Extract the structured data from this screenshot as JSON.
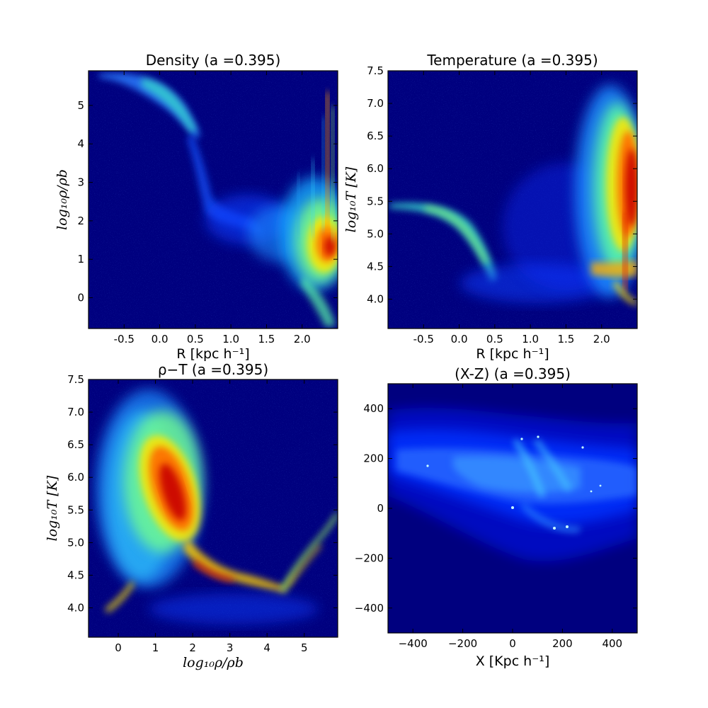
{
  "chart_data": [
    {
      "type": "heatmap",
      "title": "Density (a =0.395)",
      "xlabel": "R [kpc h⁻¹]",
      "ylabel": "log₁₀ρ/ρb",
      "xlim": [
        -1.0,
        2.5
      ],
      "ylim": [
        -0.8,
        5.9
      ],
      "xticks": [
        "-0.5",
        "0.0",
        "0.5",
        "1.0",
        "1.5",
        "2.0"
      ],
      "xtick_values": [
        -0.5,
        0.0,
        0.5,
        1.0,
        1.5,
        2.0
      ],
      "yticks": [
        "0",
        "1",
        "2",
        "3",
        "4",
        "5"
      ],
      "ytick_values": [
        0,
        1,
        2,
        3,
        4,
        5
      ],
      "colormap": "jet",
      "background": "#00007f"
    },
    {
      "type": "heatmap",
      "title": "Temperature (a =0.395)",
      "xlabel": "R [kpc h⁻¹]",
      "ylabel": "log₁₀T  [K]",
      "xlim": [
        -1.0,
        2.5
      ],
      "ylim": [
        3.55,
        7.5
      ],
      "xticks": [
        "-0.5",
        "0.0",
        "0.5",
        "1.0",
        "1.5",
        "2.0"
      ],
      "xtick_values": [
        -0.5,
        0.0,
        0.5,
        1.0,
        1.5,
        2.0
      ],
      "yticks": [
        "4.0",
        "4.5",
        "5.0",
        "5.5",
        "6.0",
        "6.5",
        "7.0",
        "7.5"
      ],
      "ytick_values": [
        4.0,
        4.5,
        5.0,
        5.5,
        6.0,
        6.5,
        7.0,
        7.5
      ],
      "colormap": "jet",
      "background": "#00007f"
    },
    {
      "type": "heatmap",
      "title": "ρ−T (a =0.395)",
      "xlabel": "log₁₀ρ/ρb",
      "ylabel": "log₁₀T  [K]",
      "xlim": [
        -0.8,
        5.9
      ],
      "ylim": [
        3.55,
        7.5
      ],
      "xticks": [
        "0",
        "1",
        "2",
        "3",
        "4",
        "5"
      ],
      "xtick_values": [
        0,
        1,
        2,
        3,
        4,
        5
      ],
      "yticks": [
        "4.0",
        "4.5",
        "5.0",
        "5.5",
        "6.0",
        "6.5",
        "7.0",
        "7.5"
      ],
      "ytick_values": [
        4.0,
        4.5,
        5.0,
        5.5,
        6.0,
        6.5,
        7.0,
        7.5
      ],
      "colormap": "jet",
      "background": "#00007f"
    },
    {
      "type": "heatmap",
      "title": "(X-Z) (a =0.395)",
      "xlabel": "X [Kpc h⁻¹]",
      "ylabel": "",
      "xlim": [
        -500,
        500
      ],
      "ylim": [
        -500,
        500
      ],
      "xticks": [
        "−400",
        "−200",
        "0",
        "200",
        "400"
      ],
      "xtick_values": [
        -400,
        -200,
        0,
        200,
        400
      ],
      "yticks": [
        "−400",
        "−200",
        "0",
        "200",
        "400"
      ],
      "ytick_values": [
        -400,
        -200,
        0,
        200,
        400
      ],
      "colormap": "jet",
      "background": "#00007f"
    }
  ]
}
